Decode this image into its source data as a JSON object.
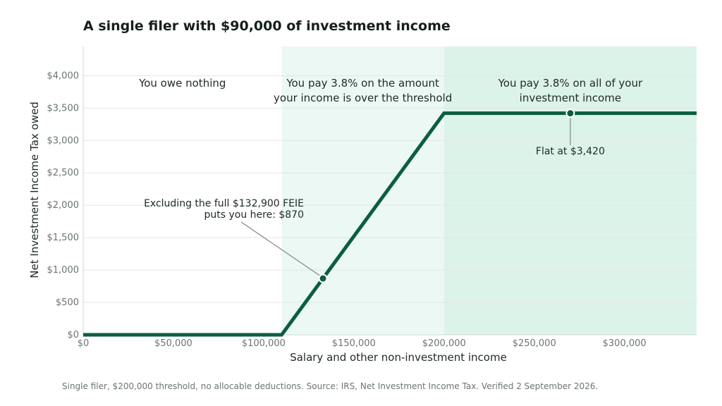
{
  "chart_data": {
    "type": "line",
    "title": "A single filer with $90,000 of investment income",
    "xlabel": "Salary and other non-investment income",
    "ylabel": "Net Investment Income Tax owed",
    "xlim": [
      0,
      340000
    ],
    "ylim": [
      0,
      4450
    ],
    "x_ticks": [
      0,
      50000,
      100000,
      150000,
      200000,
      250000,
      300000
    ],
    "x_tick_labels": [
      "$0",
      "$50,000",
      "$100,000",
      "$150,000",
      "$200,000",
      "$250,000",
      "$300,000"
    ],
    "y_ticks": [
      0,
      500,
      1000,
      1500,
      2000,
      2500,
      3000,
      3500,
      4000
    ],
    "y_tick_labels": [
      "$0",
      "$500",
      "$1,000",
      "$1,500",
      "$2,000",
      "$2,500",
      "$3,000",
      "$3,500",
      "$4,000"
    ],
    "grid": "horizontal",
    "series": [
      {
        "x": [
          0,
          110000,
          200000,
          340000
        ],
        "y": [
          0,
          0,
          3420,
          3420
        ],
        "color": "#0b5e3f"
      }
    ],
    "regions": [
      {
        "x": [
          0,
          110000
        ],
        "label": "You owe nothing",
        "color": "#ffffff"
      },
      {
        "x": [
          110000,
          200000
        ],
        "label": "You pay 3.8% on the amount your income is over the threshold",
        "lines": [
          "You pay 3.8% on the amount",
          "your income is over the threshold"
        ],
        "color": "#ebf8f3"
      },
      {
        "x": [
          200000,
          340000
        ],
        "label": "You pay 3.8% on all of your investment income",
        "lines": [
          "You pay 3.8% on all of your",
          "investment income"
        ],
        "color": "#dcf3ea"
      }
    ],
    "annotations": [
      {
        "point": [
          132900,
          870
        ],
        "lines": [
          "Excluding the full $132,900 FEIE",
          "puts you here: $870"
        ]
      },
      {
        "point": [
          270000,
          3420
        ],
        "lines": [
          "Flat at $3,420"
        ]
      }
    ]
  },
  "footer": "Single filer, $200,000 threshold, no allocable deductions. Source: IRS, Net Investment Income Tax. Verified 2 September 2026.",
  "colors": {
    "line": "#0b5e3f",
    "grid": "#e3e6e4",
    "tick_text": "#6b7570",
    "text": "#1f2a24",
    "leader": "#7d8882"
  }
}
